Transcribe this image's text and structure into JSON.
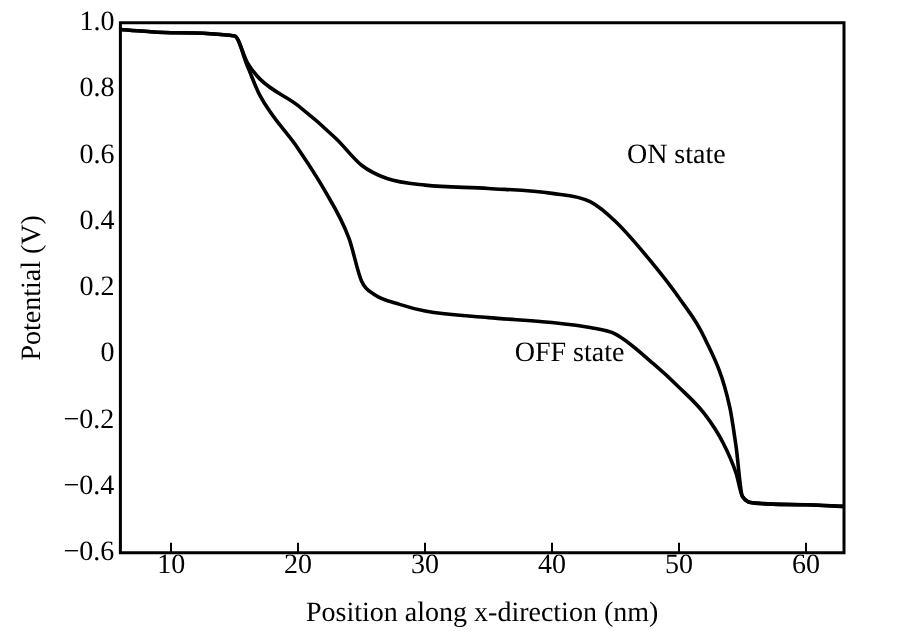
{
  "chart_data": {
    "type": "line",
    "xlabel": "Position along x-direction (nm)",
    "ylabel": "Potential (V)",
    "xlim": [
      6,
      63
    ],
    "xticks": [
      10,
      20,
      30,
      40,
      50,
      60
    ],
    "ylim": [
      -0.6,
      1.0
    ],
    "yticks": [
      {
        "value": -0.6,
        "label": "−0.6"
      },
      {
        "value": -0.4,
        "label": "−0.4"
      },
      {
        "value": -0.2,
        "label": "−0.2"
      },
      0,
      0.2,
      0.4,
      0.6,
      0.8,
      {
        "value": 1.0,
        "label": "1.0"
      }
    ],
    "grid": false,
    "legend": false,
    "marker": "none",
    "line_style": "solid",
    "series": [
      {
        "color": "#000000",
        "x": [
          6,
          10,
          15,
          16,
          17,
          20,
          23,
          25,
          27,
          30,
          35,
          40,
          43,
          45,
          48,
          50,
          52,
          54,
          54.5,
          55,
          56,
          60,
          63
        ],
        "values": [
          0.98,
          0.97,
          0.96,
          0.88,
          0.83,
          0.75,
          0.65,
          0.57,
          0.53,
          0.51,
          0.5,
          0.485,
          0.46,
          0.4,
          0.27,
          0.17,
          0.05,
          -0.16,
          -0.28,
          -0.43,
          -0.45,
          -0.455,
          -0.46
        ]
      },
      {
        "color": "#000000",
        "x": [
          6,
          10,
          15,
          16,
          17,
          20,
          22,
          24,
          25,
          26,
          28,
          30,
          35,
          40,
          43,
          45,
          48,
          50,
          52,
          53.5,
          54.5,
          55,
          56,
          60,
          63
        ],
        "values": [
          0.98,
          0.97,
          0.96,
          0.87,
          0.78,
          0.62,
          0.5,
          0.35,
          0.22,
          0.18,
          0.15,
          0.13,
          0.11,
          0.095,
          0.08,
          0.06,
          -0.03,
          -0.1,
          -0.18,
          -0.27,
          -0.36,
          -0.43,
          -0.45,
          -0.455,
          -0.46
        ]
      }
    ],
    "annotations": [
      "ON state",
      "OFF state"
    ]
  }
}
